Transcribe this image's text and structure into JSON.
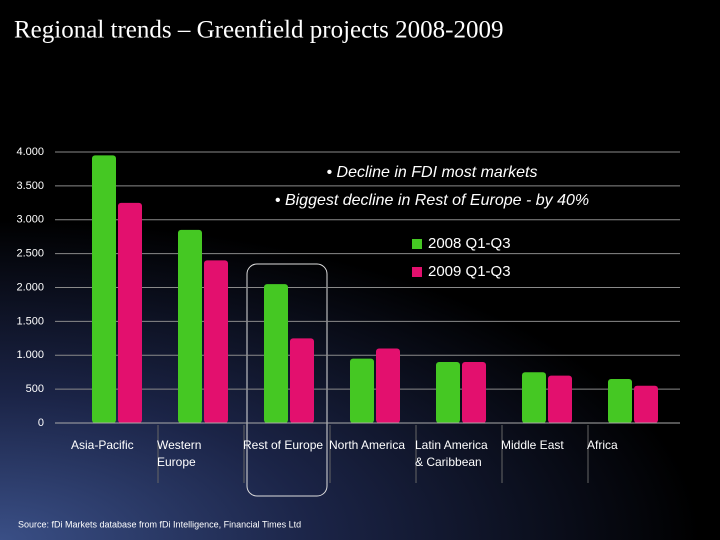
{
  "chart_data": {
    "type": "bar",
    "title": "Regional trends – Greenfield projects 2008-2009",
    "annotations": [
      "• Decline in FDI most markets",
      "• Biggest decline in Rest of Europe - by 40%"
    ],
    "source": "Source: fDi Markets database from fDi Intelligence, Financial Times Ltd",
    "categories": [
      "Asia-Pacific",
      "Western Europe",
      "Rest of Europe",
      "North America",
      "Latin America & Caribbean",
      "Middle East",
      "Africa"
    ],
    "series": [
      {
        "name": "2008 Q1-Q3",
        "color": "#45c823",
        "values": [
          3950,
          2850,
          2050,
          950,
          900,
          750,
          650
        ]
      },
      {
        "name": "2009 Q1-Q3",
        "color": "#e3106e",
        "values": [
          3250,
          2400,
          1250,
          1100,
          900,
          700,
          550
        ]
      }
    ],
    "ylim": [
      0,
      4000
    ],
    "yticks": [
      0,
      500,
      {
        "value": 1000,
        "label": "1.000"
      },
      {
        "value": 1500,
        "label": "1.500"
      },
      {
        "value": 2000,
        "label": "2.000"
      },
      {
        "value": 2500,
        "label": "2.500"
      },
      {
        "value": 3000,
        "label": "3.000"
      },
      {
        "value": 3500,
        "label": "3.500"
      },
      {
        "value": 4000,
        "label": "4.000"
      }
    ],
    "grid": true,
    "legend": "upper right"
  }
}
